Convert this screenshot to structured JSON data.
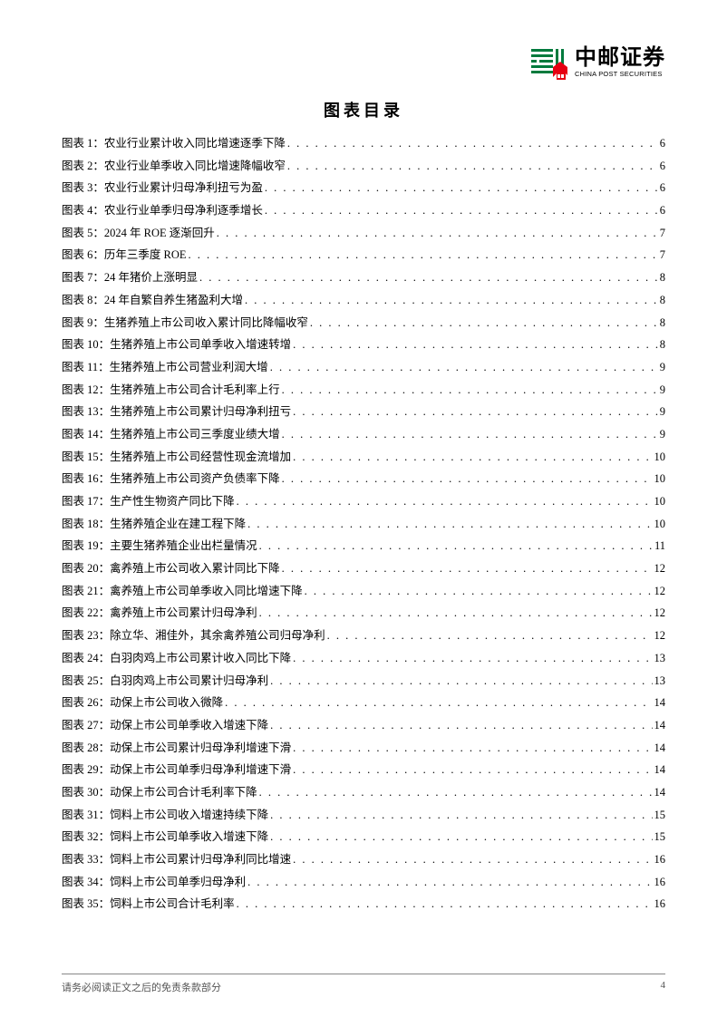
{
  "header": {
    "logo_cn": "中邮证券",
    "logo_en": "CHINA POST SECURITIES",
    "logo_color": "#007a3d",
    "logo_accent": "#e60012"
  },
  "title": "图表目录",
  "toc_label_prefix": "图表",
  "toc_label_suffix": "：",
  "toc": [
    {
      "n": "1",
      "desc": "农业行业累计收入同比增速逐季下降",
      "page": "6"
    },
    {
      "n": "2",
      "desc": "农业行业单季收入同比增速降幅收窄",
      "page": "6"
    },
    {
      "n": "3",
      "desc": "农业行业累计归母净利扭亏为盈",
      "page": "6"
    },
    {
      "n": "4",
      "desc": "农业行业单季归母净利逐季增长",
      "page": "6"
    },
    {
      "n": "5",
      "desc": "2024 年 ROE 逐渐回升",
      "page": "7"
    },
    {
      "n": "6",
      "desc": "历年三季度 ROE",
      "page": "7"
    },
    {
      "n": "7",
      "desc": "24 年猪价上涨明显",
      "page": "8"
    },
    {
      "n": "8",
      "desc": "24 年自繁自养生猪盈利大增",
      "page": "8"
    },
    {
      "n": "9",
      "desc": "生猪养殖上市公司收入累计同比降幅收窄",
      "page": "8"
    },
    {
      "n": "10",
      "desc": "生猪养殖上市公司单季收入增速转增",
      "page": "8"
    },
    {
      "n": "11",
      "desc": "生猪养殖上市公司营业利润大增",
      "page": "9"
    },
    {
      "n": "12",
      "desc": "生猪养殖上市公司合计毛利率上行",
      "page": "9"
    },
    {
      "n": "13",
      "desc": "生猪养殖上市公司累计归母净利扭亏",
      "page": "9"
    },
    {
      "n": "14",
      "desc": "生猪养殖上市公司三季度业绩大增",
      "page": "9"
    },
    {
      "n": "15",
      "desc": "生猪养殖上市公司经营性现金流增加",
      "page": "10"
    },
    {
      "n": "16",
      "desc": "生猪养殖上市公司资产负债率下降",
      "page": "10"
    },
    {
      "n": "17",
      "desc": "生产性生物资产同比下降",
      "page": "10"
    },
    {
      "n": "18",
      "desc": "生猪养殖企业在建工程下降",
      "page": "10"
    },
    {
      "n": "19",
      "desc": "主要生猪养殖企业出栏量情况",
      "page": "11"
    },
    {
      "n": "20",
      "desc": "禽养殖上市公司收入累计同比下降",
      "page": "12"
    },
    {
      "n": "21",
      "desc": "禽养殖上市公司单季收入同比增速下降",
      "page": "12"
    },
    {
      "n": "22",
      "desc": "禽养殖上市公司累计归母净利",
      "page": "12"
    },
    {
      "n": "23",
      "desc": "除立华、湘佳外，其余禽养殖公司归母净利",
      "page": "12"
    },
    {
      "n": "24",
      "desc": "白羽肉鸡上市公司累计收入同比下降",
      "page": "13"
    },
    {
      "n": "25",
      "desc": "白羽肉鸡上市公司累计归母净利",
      "page": "13"
    },
    {
      "n": "26",
      "desc": "动保上市公司收入微降",
      "page": "14"
    },
    {
      "n": "27",
      "desc": "动保上市公司单季收入增速下降",
      "page": "14"
    },
    {
      "n": "28",
      "desc": "动保上市公司累计归母净利增速下滑",
      "page": "14"
    },
    {
      "n": "29",
      "desc": "动保上市公司单季归母净利增速下滑",
      "page": "14"
    },
    {
      "n": "30",
      "desc": "动保上市公司合计毛利率下降",
      "page": "14"
    },
    {
      "n": "31",
      "desc": "饲料上市公司收入增速持续下降",
      "page": "15"
    },
    {
      "n": "32",
      "desc": "饲料上市公司单季收入增速下降",
      "page": "15"
    },
    {
      "n": "33",
      "desc": "饲料上市公司累计归母净利同比增速",
      "page": "16"
    },
    {
      "n": "34",
      "desc": "饲料上市公司单季归母净利",
      "page": "16"
    },
    {
      "n": "35",
      "desc": "饲料上市公司合计毛利率",
      "page": "16"
    }
  ],
  "footer": {
    "disclaimer": "请务必阅读正文之后的免责条款部分",
    "page_number": "4"
  },
  "style": {
    "text_color": "#000000",
    "footer_text_color": "#555555",
    "footer_line_color": "#888888",
    "body_font_size_pt": 10,
    "title_font_size_pt": 14
  }
}
